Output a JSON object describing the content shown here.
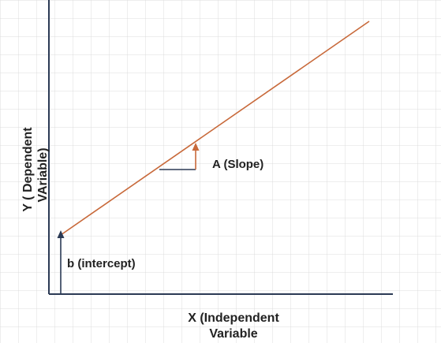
{
  "labels": {
    "y_axis_line1": "Y ( Dependent",
    "y_axis_line2": "VAriable)",
    "x_axis_line1": "X (Independent",
    "x_axis_line2": "Variable",
    "slope": "A (Slope)",
    "intercept": "b (intercept)"
  },
  "colors": {
    "background": "#ffffff",
    "grid": "#dcdcdc",
    "axis": "#2b3a55",
    "regression_line": "#c8693a",
    "slope_arrow": "#c8693a",
    "intercept_arrow": "#2b3a55",
    "text": "#222222"
  }
}
